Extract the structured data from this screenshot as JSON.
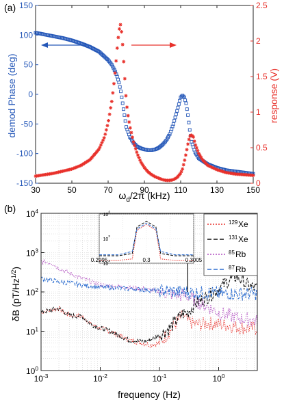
{
  "colors": {
    "blue": "#2457b8",
    "red": "#e8312b",
    "black": "#111111",
    "purple": "#b04ec0",
    "lightblue": "#2f6fd0"
  },
  "chart_data": [
    {
      "panel": "(a)",
      "type": "scatter",
      "xlabel": "ω_d/2π (kHz)",
      "ylabel_left": "demod Phase  (deg)",
      "ylabel_right": "response  (V)",
      "xlim": [
        30,
        150
      ],
      "ylim_left": [
        -150,
        150
      ],
      "ylim_right": [
        0,
        2.5
      ],
      "xticks": [
        "30",
        "50",
        "70",
        "90",
        "110",
        "130",
        "150"
      ],
      "yticks_left": [
        "-150",
        "-100",
        "-50",
        "0",
        "50",
        "100",
        "150"
      ],
      "yticks_right": [
        "0",
        "0.5",
        "1",
        "1.5",
        "2",
        "2.5"
      ],
      "arrow_left_label": "",
      "series": [
        {
          "axis": "left",
          "marker": "square",
          "color": "blue",
          "x": [
            30,
            35,
            40,
            45,
            50,
            55,
            60,
            65,
            70,
            72,
            74,
            75,
            76,
            77,
            78,
            79,
            80,
            82,
            84,
            86,
            88,
            90,
            92,
            94,
            96,
            98,
            100,
            102,
            104,
            106,
            108,
            110,
            111,
            112,
            113,
            114,
            115,
            116,
            118,
            120,
            125,
            130,
            135,
            140,
            145,
            150
          ],
          "y": [
            104,
            101,
            98,
            95,
            91,
            86,
            80,
            72,
            58,
            50,
            38,
            30,
            20,
            5,
            -15,
            -35,
            -55,
            -72,
            -82,
            -88,
            -91,
            -93,
            -94,
            -94,
            -93,
            -90,
            -85,
            -78,
            -67,
            -50,
            -28,
            -5,
            -2,
            -5,
            -15,
            -35,
            -60,
            -80,
            -98,
            -108,
            -118,
            -124,
            -128,
            -130,
            -132,
            -134
          ]
        },
        {
          "axis": "right",
          "marker": "asterisk",
          "color": "red",
          "x": [
            30,
            35,
            40,
            45,
            50,
            55,
            60,
            65,
            68,
            70,
            72,
            73,
            74,
            75,
            76,
            77,
            78,
            79,
            80,
            81,
            82,
            84,
            86,
            88,
            90,
            92,
            94,
            96,
            98,
            100,
            102,
            104,
            106,
            108,
            110,
            111,
            112,
            113,
            114,
            115,
            116,
            117,
            118,
            120,
            122,
            125,
            130,
            135,
            140,
            145,
            150
          ],
          "y": [
            0.1,
            0.12,
            0.14,
            0.17,
            0.2,
            0.25,
            0.33,
            0.48,
            0.65,
            0.85,
            1.15,
            1.35,
            1.6,
            1.9,
            2.15,
            2.25,
            1.95,
            1.55,
            1.15,
            0.95,
            0.8,
            0.58,
            0.42,
            0.3,
            0.22,
            0.16,
            0.12,
            0.09,
            0.07,
            0.05,
            0.04,
            0.04,
            0.05,
            0.08,
            0.14,
            0.2,
            0.3,
            0.42,
            0.55,
            0.66,
            0.68,
            0.65,
            0.55,
            0.42,
            0.33,
            0.25,
            0.19,
            0.15,
            0.13,
            0.12,
            0.11
          ]
        }
      ]
    },
    {
      "panel": "(b)",
      "type": "line",
      "xlabel": "frequency (Hz)",
      "ylabel": "δB  (pT/Hz^1/2)",
      "xscale": "log",
      "yscale": "log",
      "xlim": [
        0.001,
        4.5
      ],
      "ylim": [
        1,
        10000
      ],
      "xticks": [
        "10^-3",
        "10^-2",
        "10^-1",
        "10^0"
      ],
      "yticks": [
        "10^0",
        "10^1",
        "10^2",
        "10^3",
        "10^4"
      ],
      "legend": [
        "129Xe",
        "131Xe",
        "85Rb",
        "87Rb"
      ],
      "legend_placement": "top-right",
      "grid": true,
      "series": [
        {
          "name": "129Xe",
          "color": "red",
          "style": "dotted",
          "x": [
            0.001,
            0.0015,
            0.002,
            0.003,
            0.005,
            0.007,
            0.01,
            0.015,
            0.02,
            0.03,
            0.05,
            0.07,
            0.1,
            0.15,
            0.2,
            0.25,
            0.3,
            0.4,
            0.5,
            0.7,
            1,
            1.5,
            2,
            3,
            4.5
          ],
          "y": [
            30,
            35,
            38,
            25,
            24,
            15,
            12,
            10,
            8,
            6,
            5,
            4.5,
            5,
            10,
            18,
            25,
            18,
            15,
            15,
            16,
            15,
            14,
            13,
            12,
            12
          ]
        },
        {
          "name": "131Xe",
          "color": "black",
          "style": "dashed",
          "x": [
            0.001,
            0.0015,
            0.002,
            0.003,
            0.005,
            0.007,
            0.01,
            0.015,
            0.02,
            0.03,
            0.05,
            0.07,
            0.1,
            0.15,
            0.2,
            0.25,
            0.3,
            0.4,
            0.5,
            0.7,
            1,
            1.5,
            2,
            3,
            4.5
          ],
          "y": [
            30,
            35,
            38,
            25,
            24,
            15,
            12,
            10,
            8,
            6,
            5.5,
            6,
            8,
            12,
            20,
            28,
            30,
            50,
            60,
            80,
            120,
            200,
            250,
            150,
            120
          ]
        },
        {
          "name": "85Rb",
          "color": "purple",
          "style": "dotted",
          "x": [
            0.001,
            0.0015,
            0.002,
            0.003,
            0.005,
            0.007,
            0.01,
            0.015,
            0.02,
            0.03,
            0.05,
            0.07,
            0.1,
            0.15,
            0.2,
            0.25,
            0.3,
            0.4,
            0.5,
            0.7,
            1,
            1.5,
            2,
            3,
            4.5
          ],
          "y": [
            600,
            550,
            400,
            300,
            220,
            180,
            150,
            140,
            140,
            130,
            120,
            110,
            100,
            90,
            85,
            80,
            80,
            60,
            50,
            40,
            30,
            25,
            22,
            20,
            18
          ]
        },
        {
          "name": "87Rb",
          "color": "lightblue",
          "style": "dashed",
          "x": [
            0.001,
            0.0015,
            0.002,
            0.003,
            0.005,
            0.007,
            0.01,
            0.015,
            0.02,
            0.03,
            0.05,
            0.07,
            0.1,
            0.15,
            0.2,
            0.25,
            0.3,
            0.4,
            0.5,
            0.7,
            1,
            1.5,
            2,
            3,
            4.5
          ],
          "y": [
            220,
            200,
            180,
            170,
            150,
            140,
            130,
            130,
            125,
            120,
            115,
            110,
            110,
            105,
            100,
            100,
            100,
            95,
            95,
            95,
            90,
            90,
            90,
            90,
            90
          ]
        }
      ],
      "inset": {
        "xlim": [
          0.2995,
          0.3005
        ],
        "ylim": [
          100,
          10000
        ],
        "xticks": [
          "0.2995",
          "0.3",
          "0.3005"
        ],
        "yticks": [
          "10^2",
          "10^3",
          "10^4"
        ],
        "series": [
          {
            "color": "black",
            "style": "dashed",
            "x": [
              0.2995,
              0.2997,
              0.29985,
              0.2999,
              0.3,
              0.3001,
              0.30015,
              0.3003,
              0.3005
            ],
            "y": [
              200,
              200,
              250,
              3000,
              5000,
              3000,
              250,
              200,
              200
            ]
          },
          {
            "color": "red",
            "style": "dotted",
            "x": [
              0.2995,
              0.2997,
              0.29985,
              0.2999,
              0.3,
              0.3001,
              0.30015,
              0.3003,
              0.3005
            ],
            "y": [
              130,
              130,
              150,
              2200,
              3700,
              2200,
              150,
              130,
              130
            ]
          },
          {
            "color": "lightblue",
            "style": "dashed",
            "x": [
              0.2995,
              0.2997,
              0.29985,
              0.2999,
              0.3,
              0.3001,
              0.30015,
              0.3003,
              0.3005
            ],
            "y": [
              220,
              220,
              300,
              2500,
              4200,
              2500,
              300,
              220,
              220
            ]
          }
        ]
      }
    }
  ],
  "labels": {
    "panel_a": "(a)",
    "panel_b": "(b)",
    "a_xlabel_main": "ω",
    "a_xlabel_sub": "d",
    "a_xlabel_tail": "/2π (kHz)",
    "a_ylabel_left": "demod Phase  (deg)",
    "a_ylabel_right": "response  (V)",
    "b_xlabel": "frequency (Hz)",
    "b_ylabel_main": "δB  (pT/Hz",
    "b_ylabel_sup": "1/2",
    "b_ylabel_tail": ")",
    "legend_xe129_sup": "129",
    "legend_xe129": "Xe",
    "legend_xe131_sup": "131",
    "legend_xe131": "Xe",
    "legend_rb85_sup": "85",
    "legend_rb85": "Rb",
    "legend_rb87_sup": "87",
    "legend_rb87": "Rb",
    "ten": "10"
  }
}
